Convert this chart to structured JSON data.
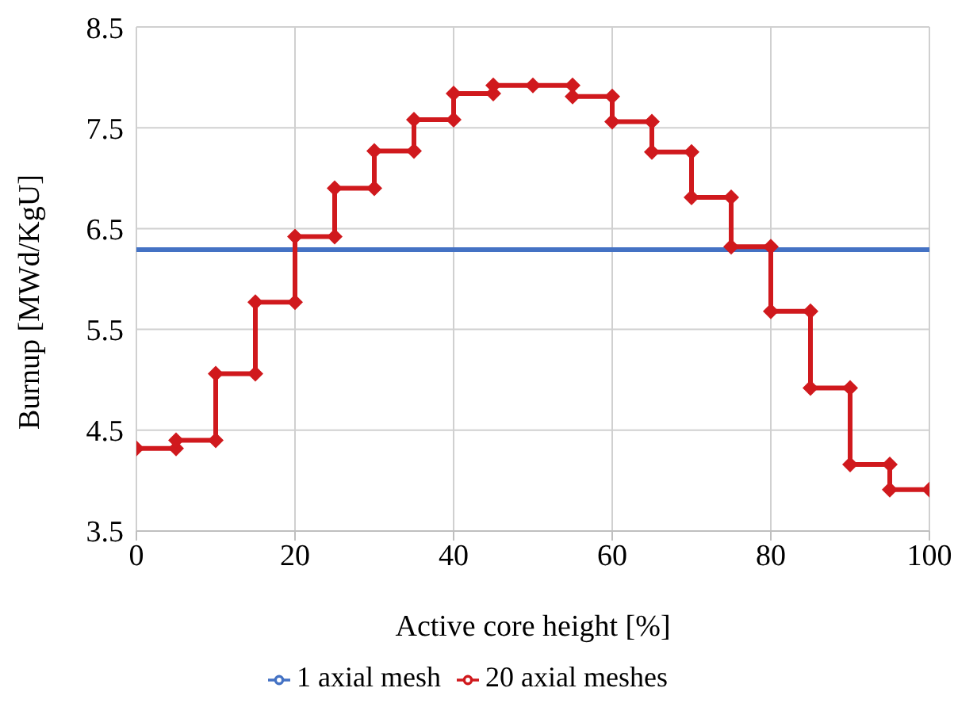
{
  "chart_data": {
    "type": "line",
    "xlabel": "Active core height [%]",
    "ylabel": "Burnup [MWd/KgU]",
    "xlim": [
      0,
      100
    ],
    "xticks": [
      0,
      20,
      40,
      60,
      80,
      100
    ],
    "ylim": [
      3.5,
      8.5
    ],
    "yticks": [
      3.5,
      4.5,
      5.5,
      6.5,
      7.5,
      8.5
    ],
    "grid": true,
    "legend": "bottom",
    "line_style": "solid",
    "series": [
      {
        "name": "1 axial mesh",
        "color": "#4472c4",
        "marker": "none",
        "x": [
          0,
          100
        ],
        "values": [
          6.29,
          6.29
        ]
      },
      {
        "name": "20 axial meshes",
        "color": "#d0191d",
        "marker": "diamond",
        "x": [
          0,
          5,
          5,
          10,
          10,
          15,
          15,
          20,
          20,
          25,
          25,
          30,
          30,
          35,
          35,
          40,
          40,
          45,
          45,
          50,
          55,
          55,
          60,
          60,
          65,
          65,
          70,
          70,
          75,
          75,
          80,
          80,
          85,
          85,
          90,
          90,
          95,
          95,
          100
        ],
        "values": [
          4.32,
          4.32,
          4.4,
          4.4,
          5.06,
          5.06,
          5.77,
          5.77,
          6.42,
          6.42,
          6.9,
          6.9,
          7.27,
          7.27,
          7.58,
          7.58,
          7.84,
          7.84,
          7.92,
          7.92,
          7.92,
          7.81,
          7.81,
          7.56,
          7.56,
          7.26,
          7.26,
          6.81,
          6.81,
          6.32,
          6.32,
          5.68,
          5.68,
          4.92,
          4.92,
          4.16,
          4.16,
          3.91,
          3.91
        ]
      }
    ]
  }
}
